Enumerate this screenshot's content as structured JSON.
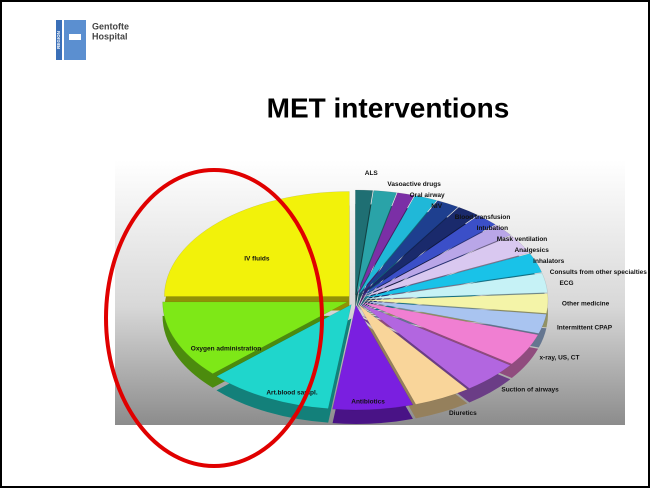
{
  "header": {
    "region": "REGION",
    "name_line1": "Gentofte",
    "name_line2": "Hospital"
  },
  "chart_data": {
    "type": "pie",
    "title": "MET interventions",
    "categories": [
      "ALS",
      "Vasoactive drugs",
      "Oral airway",
      "NIV",
      "Blood transfusion",
      "Intubation",
      "Mask ventilation",
      "Analgesics",
      "Inhalators",
      "Consults from other specialties",
      "ECG",
      "Other medicine",
      "Intermittent CPAP",
      "x-ray, US, CT",
      "Suction of airways",
      "Diuretics",
      "Antibiotics",
      "Art.blood sampl.",
      "Oxygen administration",
      "IV fluids"
    ],
    "values": [
      1.5,
      2,
      1.5,
      2,
      2,
      2,
      2,
      2,
      3,
      3,
      3,
      3,
      3,
      5,
      5,
      5,
      7,
      11,
      12,
      25
    ],
    "colors": [
      "#1f6f73",
      "#2aa3a8",
      "#7b2fa6",
      "#20b8d8",
      "#1e3f8f",
      "#1a2a6c",
      "#3b4fc8",
      "#b9a6e8",
      "#d9c8f0",
      "#19c2e8",
      "#c6f2f6",
      "#f4f4a8",
      "#a9c4f0",
      "#f07fd2",
      "#b266e0",
      "#f9d59a",
      "#7a1fe0",
      "#1fd6cc",
      "#7ee817",
      "#f2f20a"
    ]
  }
}
